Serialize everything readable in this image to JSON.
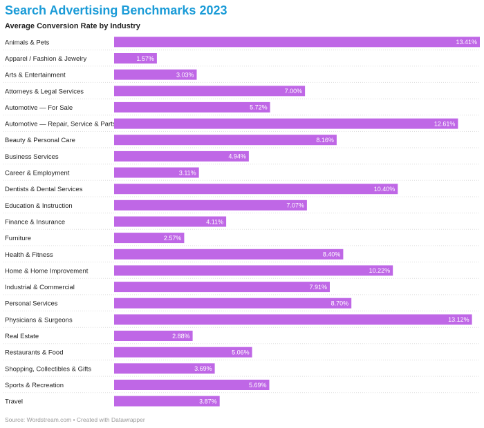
{
  "chart_data": {
    "type": "bar",
    "orientation": "horizontal",
    "title": "Search Advertising Benchmarks 2023",
    "subtitle": "Average Conversion Rate by Industry",
    "xlim": [
      0,
      13.41
    ],
    "grid": false,
    "value_suffix": "%",
    "bar_color": "#bf67e6",
    "categories": [
      "Animals & Pets",
      "Apparel / Fashion & Jewelry",
      "Arts & Entertainment",
      "Attorneys & Legal Services",
      "Automotive — For Sale",
      "Automotive — Repair, Service & Parts",
      "Beauty & Personal Care",
      "Business Services",
      "Career & Employment",
      "Dentists & Dental Services",
      "Education & Instruction",
      "Finance & Insurance",
      "Furniture",
      "Health & Fitness",
      "Home & Home Improvement",
      "Industrial & Commercial",
      "Personal Services",
      "Physicians & Surgeons",
      "Real Estate",
      "Restaurants & Food",
      "Shopping, Collectibles & Gifts",
      "Sports & Recreation",
      "Travel"
    ],
    "values": [
      13.41,
      1.57,
      3.03,
      7.0,
      5.72,
      12.61,
      8.16,
      4.94,
      3.11,
      10.4,
      7.07,
      4.11,
      2.57,
      8.4,
      10.22,
      7.91,
      8.7,
      13.12,
      2.88,
      5.06,
      3.69,
      5.69,
      3.87
    ],
    "value_labels": [
      "13.41%",
      "1.57%",
      "3.03%",
      "7.00%",
      "5.72%",
      "12.61%",
      "8.16%",
      "4.94%",
      "3.11%",
      "10.40%",
      "7.07%",
      "4.11%",
      "2.57%",
      "8.40%",
      "10.22%",
      "7.91%",
      "8.70%",
      "13.12%",
      "2.88%",
      "5.06%",
      "3.69%",
      "5.69%",
      "3.87%"
    ]
  },
  "source": "Source: Wordstream.com • Created with Datawrapper"
}
